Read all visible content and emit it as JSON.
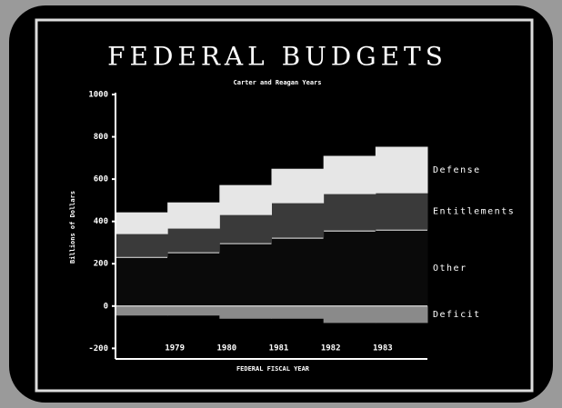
{
  "chart_data": {
    "type": "stacked-step",
    "title": "FEDERAL BUDGETS",
    "subtitle": "Carter and Reagan Years",
    "y_label": "Billions of Dollars",
    "x_label": "FEDERAL FISCAL YEAR",
    "categories": [
      null,
      "1979",
      "1980",
      "1981",
      "1982",
      "1983"
    ],
    "series": [
      {
        "name": "Other",
        "color": "#0a0a0a",
        "values": [
          232,
          254,
          297,
          323,
          357,
          361
        ]
      },
      {
        "name": "Entitlements",
        "color": "#3a3a3a",
        "values": [
          108,
          112,
          133,
          163,
          172,
          172
        ]
      },
      {
        "name": "Defense",
        "color": "#e6e6e6",
        "values": [
          103,
          124,
          142,
          163,
          181,
          220
        ]
      },
      {
        "name": "Deficit",
        "color": "#8a8a8a",
        "values": [
          -45,
          -45,
          -60,
          -60,
          -80,
          -80
        ]
      }
    ],
    "ylim": [
      -250,
      1000
    ],
    "yticks": [
      -200,
      0,
      200,
      400,
      600,
      800,
      1000
    ]
  }
}
